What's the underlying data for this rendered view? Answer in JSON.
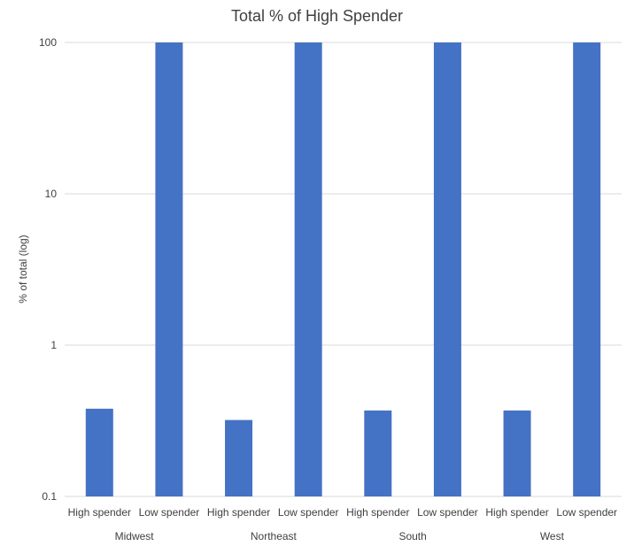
{
  "chart_data": {
    "type": "bar",
    "title": "Total % of High Spender",
    "xlabel": "",
    "ylabel": "% of total (log)",
    "yscale": "log",
    "ylim": [
      0.1,
      100
    ],
    "yticks": [
      0.1,
      1,
      10,
      100
    ],
    "y_tick_labels": [
      "0.1",
      "1",
      "10",
      "100"
    ],
    "grid": true,
    "legend": "none",
    "bar_color": "#4472c4",
    "groups": [
      "Midwest",
      "Northeast",
      "South",
      "West"
    ],
    "categories": [
      "High spender",
      "Low spender"
    ],
    "values": [
      [
        0.38,
        100
      ],
      [
        0.32,
        100
      ],
      [
        0.37,
        100
      ],
      [
        0.37,
        100
      ]
    ]
  }
}
